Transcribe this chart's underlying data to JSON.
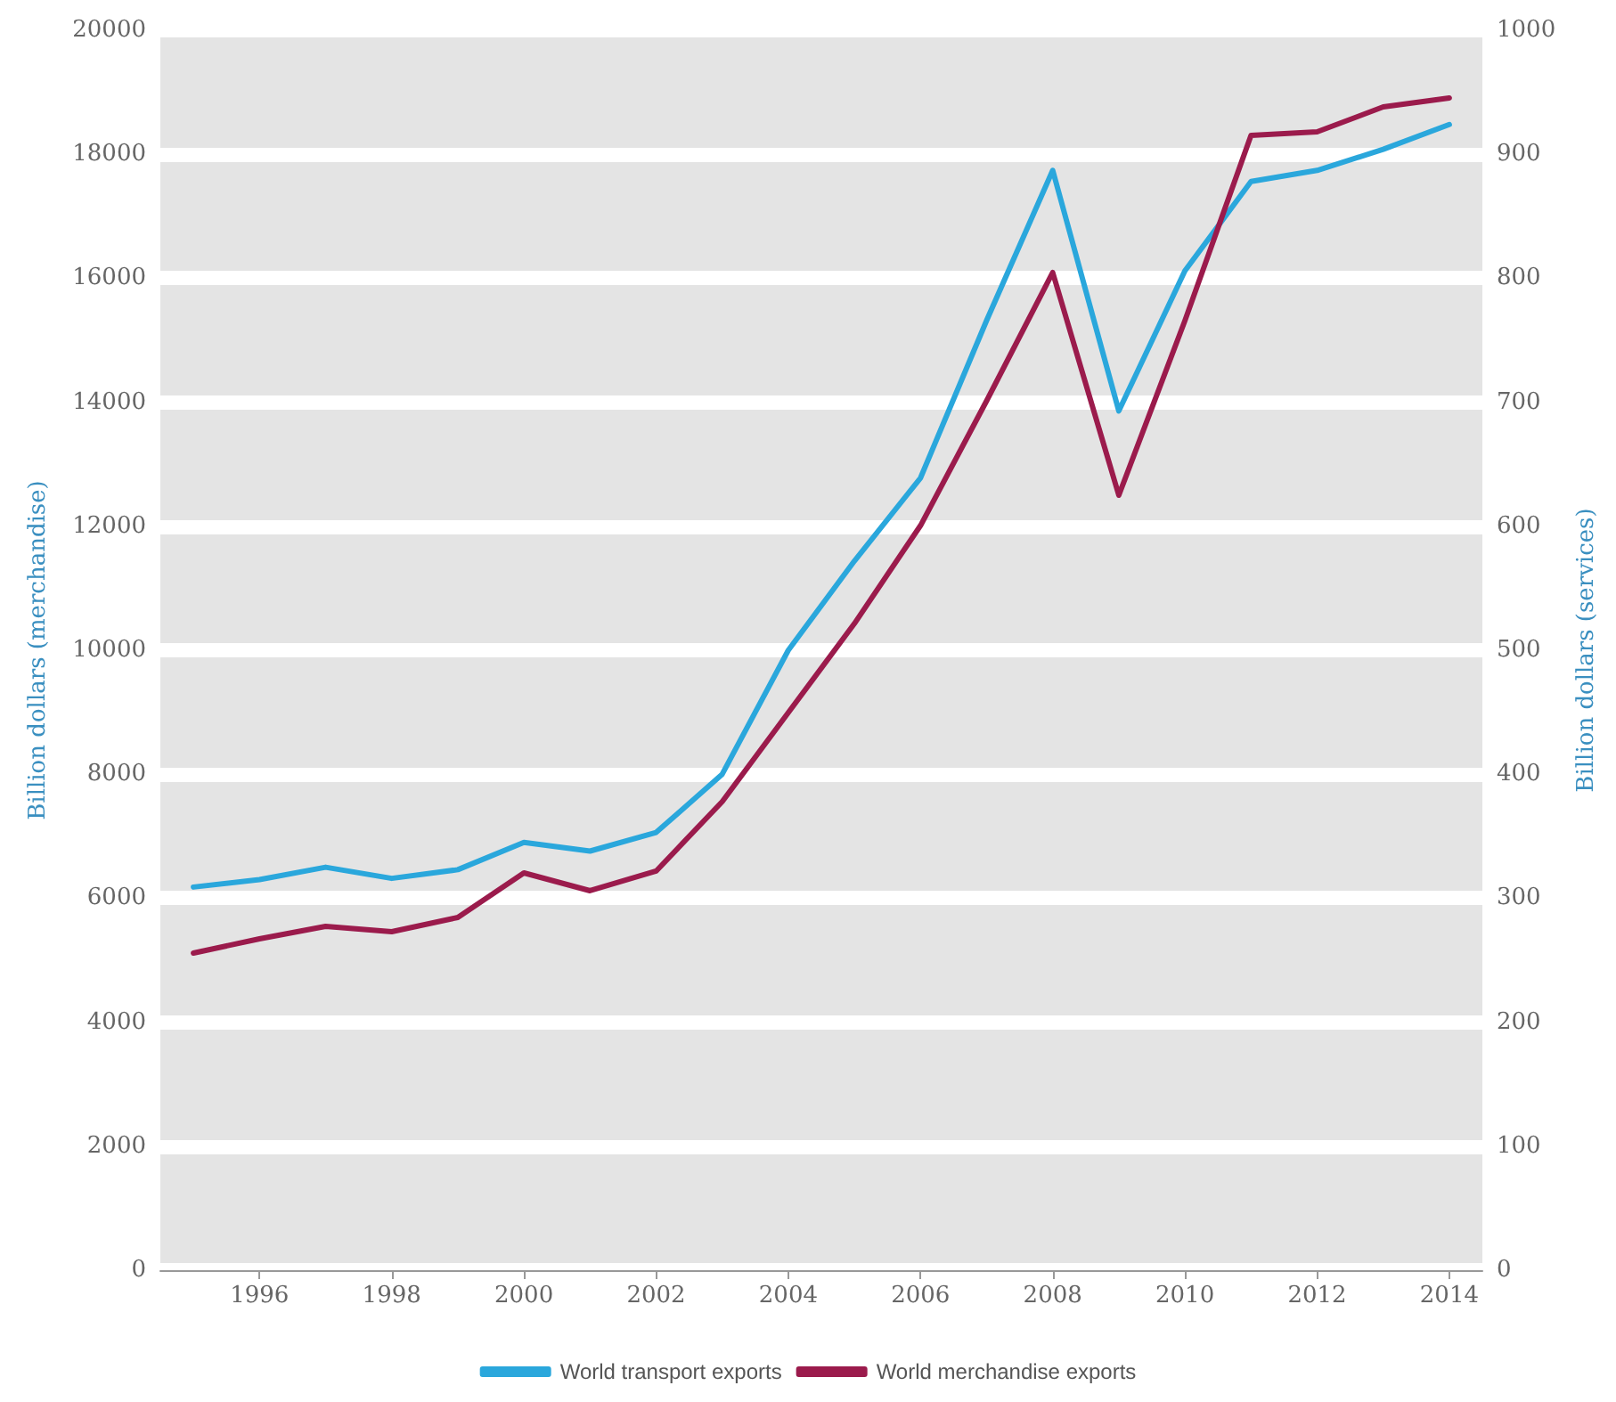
{
  "chart_data": {
    "type": "line",
    "ylabel": "Billion dollars (merchandise)",
    "y2label": "Billion dollars (services)",
    "x": [
      1995,
      1996,
      1997,
      1998,
      1999,
      2000,
      2001,
      2002,
      2003,
      2004,
      2005,
      2006,
      2007,
      2008,
      2009,
      2010,
      2011,
      2012,
      2013,
      2014
    ],
    "series": [
      {
        "name": "World transport exports",
        "color": "#2aa7dc",
        "axis": "y2",
        "values": [
          309,
          315,
          325,
          316,
          323,
          345,
          338,
          353,
          400,
          500,
          572,
          639,
          766,
          887,
          693,
          806,
          878,
          887,
          904,
          924
        ]
      },
      {
        "name": "World merchandise exports",
        "color": "#9b1b4c",
        "values": [
          5115,
          5345,
          5546,
          5460,
          5690,
          6408,
          6121,
          6437,
          7557,
          8994,
          10430,
          12011,
          14023,
          16092,
          12500,
          15316,
          18305,
          18362,
          18764,
          18908
        ]
      }
    ],
    "xlim": [
      1994.5,
      2014.5
    ],
    "xticks": [
      1996,
      1998,
      2000,
      2002,
      2004,
      2006,
      2008,
      2010,
      2012,
      2014
    ],
    "ylim": [
      0,
      20000
    ],
    "yticks": [
      0,
      2000,
      4000,
      6000,
      8000,
      10000,
      12000,
      14000,
      16000,
      18000,
      20000
    ],
    "y2lim": [
      0,
      1000
    ],
    "y2ticks": [
      0,
      100,
      200,
      300,
      400,
      500,
      600,
      700,
      800,
      900,
      1000
    ],
    "grid": "y",
    "legend": "bottom",
    "marker": "none",
    "line_style": "solid"
  }
}
